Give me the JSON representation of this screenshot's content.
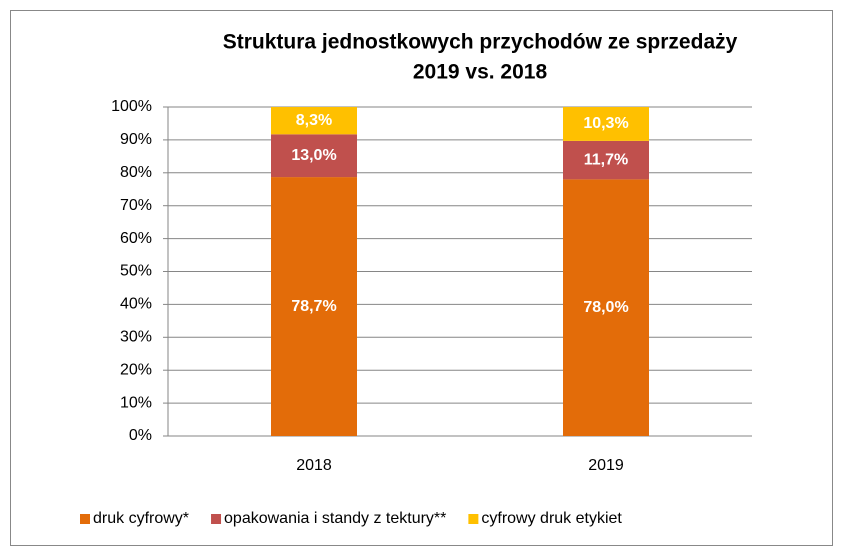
{
  "chart_data": {
    "type": "stacked_bar",
    "title": "Struktura jednostkowych przychodów ze sprzedaży",
    "subtitle": "2019 vs. 2018",
    "categories": [
      "2018",
      "2019"
    ],
    "series": [
      {
        "name": "druk cyfrowy*",
        "color": "#E36C09",
        "values": [
          78.7,
          78.0
        ],
        "value_labels": [
          "78,7%",
          "78,0%"
        ]
      },
      {
        "name": "opakowania i standy z tektury**",
        "color": "#C0504D",
        "values": [
          13.0,
          11.7
        ],
        "value_labels": [
          "13,0%",
          "11,7%"
        ]
      },
      {
        "name": "cyfrowy druk etykiet",
        "color": "#FFC000",
        "values": [
          8.3,
          10.3
        ],
        "value_labels": [
          "8,3%",
          "10,3%"
        ]
      }
    ],
    "ylim": [
      0,
      100
    ],
    "yticks": [
      {
        "value": 0,
        "label": "0%"
      },
      {
        "value": 10,
        "label": "10%"
      },
      {
        "value": 20,
        "label": "20%"
      },
      {
        "value": 30,
        "label": "30%"
      },
      {
        "value": 40,
        "label": "40%"
      },
      {
        "value": 50,
        "label": "50%"
      },
      {
        "value": 60,
        "label": "60%"
      },
      {
        "value": 70,
        "label": "70%"
      },
      {
        "value": 80,
        "label": "80%"
      },
      {
        "value": 90,
        "label": "90%"
      },
      {
        "value": 100,
        "label": "100%"
      }
    ],
    "grid": true,
    "legend": "bottom"
  }
}
